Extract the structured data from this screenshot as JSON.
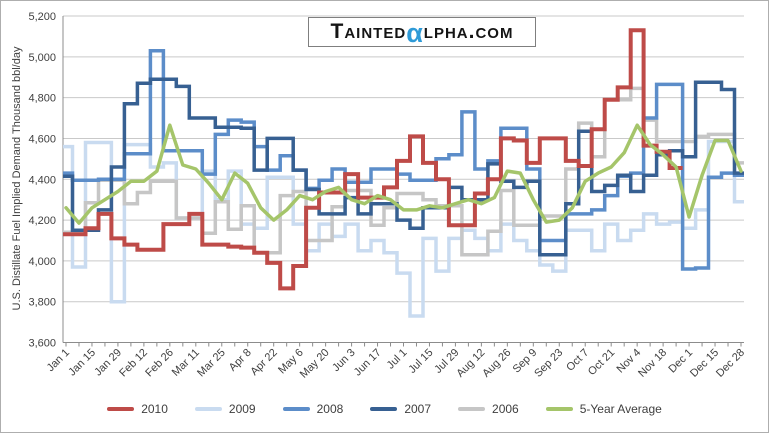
{
  "logo": {
    "prefix": "Tainted",
    "alpha": "α",
    "suffix": "lpha.com",
    "alpha_color": "#2e9ad7"
  },
  "chart_data": {
    "type": "line",
    "subtype": "weekly step series (value held for each week)",
    "title": "",
    "ylabel": "U.S. Distillate Fuel Implied Demand Thousand bbl/day",
    "xlabel": "",
    "ylim": [
      3600,
      5200
    ],
    "ytick_interval": 200,
    "ytick_labels": [
      "3,600",
      "3,800",
      "4,000",
      "4,200",
      "4,400",
      "4,600",
      "4,800",
      "5,000",
      "5,200"
    ],
    "xtick_labels": [
      "Jan 1",
      "Jan 15",
      "Jan 29",
      "Feb 12",
      "Feb 26",
      "Mar 11",
      "Mar 25",
      "Apr 8",
      "Apr 22",
      "May 6",
      "May 20",
      "Jun 3",
      "Jun 17",
      "Jul 1",
      "Jul 15",
      "Jul 29",
      "Aug 12",
      "Aug 26",
      "Sep 9",
      "Sep 23",
      "Oct 7",
      "Oct 21",
      "Nov 4",
      "Nov 18",
      "Dec 1",
      "Dec 15",
      "Dec 28"
    ],
    "weeks_per_xtick": 2,
    "n_weeks": 53,
    "grid": "horizontal",
    "legend_position": "bottom",
    "axis_color": "#8c8c8c",
    "grid_color": "#c9c9c9",
    "tick_text_color": "#3f3f3f",
    "series": [
      {
        "name": "2010",
        "color": "#be4b48",
        "style": "step",
        "line_width": 4,
        "values": [
          4130,
          4130,
          4160,
          4230,
          4110,
          4080,
          4055,
          4055,
          4180,
          4180,
          4230,
          4080,
          4080,
          4070,
          4065,
          4040,
          3990,
          3865,
          3975,
          4260,
          4335,
          4335,
          4425,
          4310,
          4310,
          4360,
          4490,
          4610,
          4480,
          4400,
          4175,
          4175,
          4330,
          4400,
          4600,
          4590,
          4480,
          4600,
          4600,
          4490,
          4465,
          4645,
          4790,
          4850,
          5130,
          4565,
          4535,
          4455,
          null,
          null,
          null,
          null,
          null
        ]
      },
      {
        "name": "2009",
        "color": "#c9dbf0",
        "style": "step",
        "line_width": 3.5,
        "values": [
          4560,
          3970,
          4580,
          4580,
          3800,
          4570,
          4570,
          4460,
          4480,
          4210,
          4210,
          4440,
          4300,
          4440,
          4180,
          4160,
          4410,
          4410,
          4180,
          4050,
          4180,
          4120,
          4180,
          4050,
          4100,
          4040,
          3940,
          3730,
          4110,
          3950,
          4110,
          4150,
          4110,
          4050,
          4180,
          4100,
          4050,
          3980,
          3950,
          4150,
          4150,
          4050,
          4180,
          4100,
          4150,
          4230,
          4180,
          4190,
          4160,
          4250,
          4585,
          4585,
          4290
        ]
      },
      {
        "name": "2008",
        "color": "#5c8dc9",
        "style": "step",
        "line_width": 3.5,
        "values": [
          4430,
          4395,
          4395,
          4400,
          4400,
          4525,
          4525,
          5030,
          4540,
          4540,
          4540,
          4425,
          4620,
          4690,
          4680,
          4560,
          4445,
          4515,
          4445,
          4355,
          4395,
          4450,
          4385,
          4385,
          4450,
          4450,
          4425,
          4395,
          4395,
          4500,
          4520,
          4730,
          4450,
          4490,
          4650,
          4650,
          4450,
          4100,
          4100,
          4230,
          4230,
          4250,
          4320,
          4415,
          4430,
          4700,
          4865,
          4865,
          3960,
          3965,
          4410,
          4430,
          4420
        ]
      },
      {
        "name": "2007",
        "color": "#376092",
        "style": "step",
        "line_width": 3.5,
        "values": [
          4415,
          4150,
          4150,
          4250,
          4460,
          4770,
          4870,
          4890,
          4890,
          4855,
          4700,
          4700,
          4655,
          4655,
          4650,
          4445,
          4600,
          4600,
          4445,
          4350,
          4230,
          4230,
          4310,
          4230,
          4280,
          4280,
          4200,
          4160,
          4260,
          4260,
          4360,
          4300,
          4300,
          4475,
          4390,
          4360,
          4390,
          4030,
          4030,
          4280,
          4635,
          4340,
          4370,
          4420,
          4340,
          4420,
          4520,
          4540,
          4510,
          4875,
          4875,
          4840,
          4430
        ]
      },
      {
        "name": "2006",
        "color": "#c6c6c6",
        "style": "step",
        "line_width": 3.5,
        "values": [
          4140,
          4140,
          4285,
          4395,
          4395,
          4280,
          4335,
          4390,
          4390,
          4210,
          4210,
          4135,
          4290,
          4155,
          4270,
          4040,
          4040,
          4320,
          4340,
          4100,
          4100,
          4265,
          4345,
          4345,
          4175,
          4260,
          4330,
          4330,
          4300,
          4270,
          4270,
          4030,
          4030,
          4145,
          4345,
          4175,
          4175,
          4220,
          4220,
          4450,
          4675,
          4510,
          4790,
          4790,
          4845,
          4690,
          4585,
          4585,
          4585,
          4610,
          4620,
          4620,
          4480
        ]
      },
      {
        "name": "5-Year Average",
        "color": "#a5c56a",
        "style": "smooth",
        "line_width": 3.5,
        "values": [
          4260,
          4185,
          4260,
          4300,
          4340,
          4390,
          4390,
          4440,
          4665,
          4470,
          4450,
          4380,
          4300,
          4430,
          4380,
          4260,
          4200,
          4250,
          4320,
          4300,
          4340,
          4360,
          4300,
          4280,
          4320,
          4300,
          4250,
          4250,
          4270,
          4260,
          4280,
          4300,
          4280,
          4310,
          4440,
          4430,
          4300,
          4190,
          4200,
          4260,
          4390,
          4430,
          4460,
          4530,
          4665,
          4570,
          4520,
          4460,
          4215,
          4420,
          4590,
          4590,
          4440
        ]
      }
    ]
  }
}
